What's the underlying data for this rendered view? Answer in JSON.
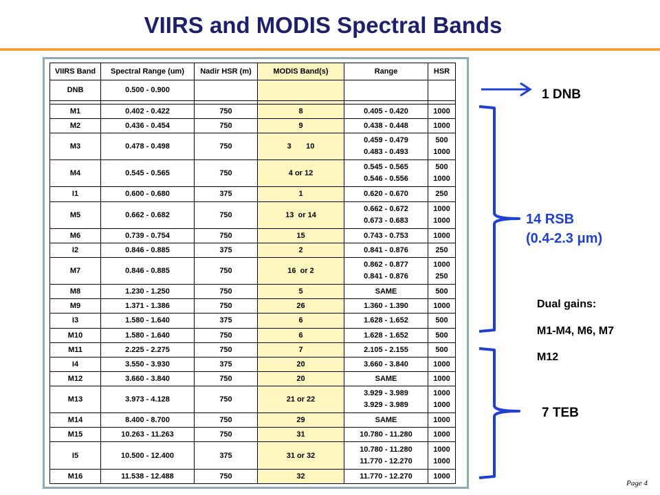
{
  "title": "VIIRS and MODIS Spectral Bands",
  "page_label": "Page 4",
  "table": {
    "headers": [
      "VIIRS Band",
      "Spectral Range (um)",
      "Nadir HSR (m)",
      "MODIS Band(s)",
      "Range",
      "HSR"
    ],
    "dnb": {
      "band": "DNB",
      "range": "0.500 - 0.900"
    },
    "rows": [
      {
        "band": "M1",
        "range": "0.402 - 0.422",
        "hsr": "750",
        "modis": [
          "8"
        ],
        "modis_range": [
          "0.405 - 0.420"
        ],
        "modis_hsr": [
          "1000"
        ]
      },
      {
        "band": "M2",
        "range": "0.436 - 0.454",
        "hsr": "750",
        "modis": [
          "9"
        ],
        "modis_range": [
          "0.438 - 0.448"
        ],
        "modis_hsr": [
          "1000"
        ]
      },
      {
        "band": "M3",
        "range": "0.478 - 0.498",
        "hsr": "750",
        "modis": [
          "3       10"
        ],
        "modis_range": [
          "0.459 - 0.479",
          "0.483 - 0.493"
        ],
        "modis_hsr": [
          "500",
          "1000"
        ]
      },
      {
        "band": "M4",
        "range": "0.545 - 0.565",
        "hsr": "750",
        "modis": [
          "4 or 12"
        ],
        "modis_range": [
          "0.545 - 0.565",
          "0.546 - 0.556"
        ],
        "modis_hsr": [
          "500",
          "1000"
        ]
      },
      {
        "band": "I1",
        "range": "0.600 - 0.680",
        "hsr": "375",
        "modis": [
          "1"
        ],
        "modis_range": [
          "0.620 - 0.670"
        ],
        "modis_hsr": [
          "250"
        ]
      },
      {
        "band": "M5",
        "range": "0.662 - 0.682",
        "hsr": "750",
        "modis": [
          "13  or 14"
        ],
        "modis_range": [
          "0.662 - 0.672",
          "0.673 - 0.683"
        ],
        "modis_hsr": [
          "1000",
          "1000"
        ]
      },
      {
        "band": "M6",
        "range": "0.739 - 0.754",
        "hsr": "750",
        "modis": [
          "15"
        ],
        "modis_range": [
          "0.743 - 0.753"
        ],
        "modis_hsr": [
          "1000"
        ]
      },
      {
        "band": "I2",
        "range": "0.846 - 0.885",
        "hsr": "375",
        "modis": [
          "2"
        ],
        "modis_range": [
          "0.841 - 0.876"
        ],
        "modis_hsr": [
          "250"
        ]
      },
      {
        "band": "M7",
        "range": "0.846 - 0.885",
        "hsr": "750",
        "modis": [
          "16  or 2"
        ],
        "modis_range": [
          "0.862 - 0.877",
          "0.841 - 0.876"
        ],
        "modis_hsr": [
          "1000",
          "250"
        ]
      },
      {
        "band": "M8",
        "range": "1.230 - 1.250",
        "hsr": "750",
        "modis": [
          "5"
        ],
        "modis_range": [
          "SAME"
        ],
        "modis_hsr": [
          "500"
        ]
      },
      {
        "band": "M9",
        "range": "1.371 - 1.386",
        "hsr": "750",
        "modis": [
          "26"
        ],
        "modis_range": [
          "1.360 - 1.390"
        ],
        "modis_hsr": [
          "1000"
        ]
      },
      {
        "band": "I3",
        "range": "1.580 - 1.640",
        "hsr": "375",
        "modis": [
          "6"
        ],
        "modis_range": [
          "1.628 - 1.652"
        ],
        "modis_hsr": [
          "500"
        ]
      },
      {
        "band": "M10",
        "range": "1.580 - 1.640",
        "hsr": "750",
        "modis": [
          "6"
        ],
        "modis_range": [
          "1.628 - 1.652"
        ],
        "modis_hsr": [
          "500"
        ]
      },
      {
        "band": "M11",
        "range": "2.225 - 2.275",
        "hsr": "750",
        "modis": [
          "7"
        ],
        "modis_range": [
          "2.105 - 2.155"
        ],
        "modis_hsr": [
          "500"
        ]
      },
      {
        "band": "I4",
        "range": "3.550 - 3.930",
        "hsr": "375",
        "modis": [
          "20"
        ],
        "modis_range": [
          "3.660 - 3.840"
        ],
        "modis_hsr": [
          "1000"
        ]
      },
      {
        "band": "M12",
        "range": "3.660 - 3.840",
        "hsr": "750",
        "modis": [
          "20"
        ],
        "modis_range": [
          "SAME"
        ],
        "modis_hsr": [
          "1000"
        ]
      },
      {
        "band": "M13",
        "range": "3.973 - 4.128",
        "hsr": "750",
        "modis": [
          "21 or 22"
        ],
        "modis_range": [
          "3.929 - 3.989",
          "3.929 - 3.989"
        ],
        "modis_hsr": [
          "1000",
          "1000"
        ]
      },
      {
        "band": "M14",
        "range": "8.400 - 8.700",
        "hsr": "750",
        "modis": [
          "29"
        ],
        "modis_range": [
          "SAME"
        ],
        "modis_hsr": [
          "1000"
        ]
      },
      {
        "band": "M15",
        "range": "10.263 - 11.263",
        "hsr": "750",
        "modis": [
          "31"
        ],
        "modis_range": [
          "10.780 - 11.280"
        ],
        "modis_hsr": [
          "1000"
        ]
      },
      {
        "band": "I5",
        "range": "10.500 - 12.400",
        "hsr": "375",
        "modis": [
          "31 or 32"
        ],
        "modis_range": [
          "10.780 - 11.280",
          "11.770 - 12.270"
        ],
        "modis_hsr": [
          "1000",
          "1000"
        ]
      },
      {
        "band": "M16",
        "range": "11.538 - 12.488",
        "hsr": "750",
        "modis": [
          "32"
        ],
        "modis_range": [
          "11.770 - 12.270"
        ],
        "modis_hsr": [
          "1000"
        ]
      }
    ]
  },
  "annotations": {
    "dnb_label": "1 DNB",
    "rsb_label_line1": "14 RSB",
    "rsb_label_line2": "(0.4-2.3 μm)",
    "teb_label": "7 TEB",
    "dual_gains_title": "Dual gains:",
    "dual_gains_line1": "M1-M4, M6, M7",
    "dual_gains_line2": "M12"
  },
  "colors": {
    "title": "#1f1f6b",
    "accent_rule": "#f5a33a",
    "bracket_blue": "#1f3fd1",
    "modis_highlight": "#fff6bf",
    "frame": "#8fa9b7"
  }
}
